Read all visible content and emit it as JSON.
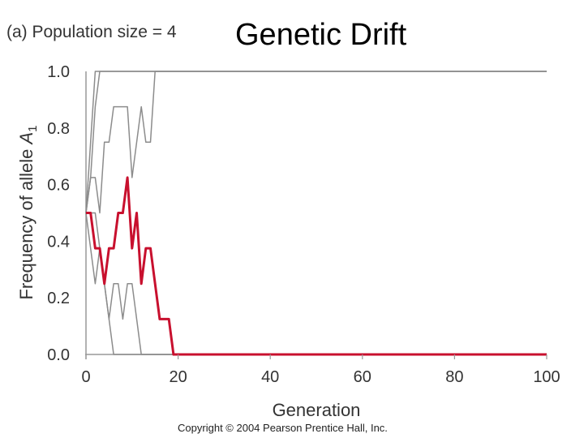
{
  "header": {
    "panel_label": "(a) Population size = 4",
    "title": "Genetic Drift"
  },
  "footer": {
    "copyright": "Copyright © 2004 Pearson Prentice Hall, Inc."
  },
  "chart_data": {
    "type": "line",
    "title": "Genetic Drift",
    "subtitle": "(a) Population size = 4",
    "xlabel": "Generation",
    "ylabel": "Frequency of allele A1",
    "ylabel_parts": {
      "text": "Frequency of allele ",
      "symbol": "A",
      "subscript": "1"
    },
    "xlim": [
      0,
      100
    ],
    "ylim": [
      0.0,
      1.0
    ],
    "xticks": [
      "0",
      "20",
      "40",
      "60",
      "80",
      "100"
    ],
    "yticks": [
      "0.0",
      "0.2",
      "0.4",
      "0.6",
      "0.8",
      "1.0"
    ],
    "grid": false,
    "colors": {
      "highlight": "#c8102e",
      "other": "#8c8c8c",
      "axis": "#999999"
    },
    "series": [
      {
        "highlight": true,
        "values": [
          [
            0,
            0.5
          ],
          [
            1,
            0.5
          ],
          [
            2,
            0.375
          ],
          [
            3,
            0.375
          ],
          [
            4,
            0.25
          ],
          [
            5,
            0.375
          ],
          [
            6,
            0.375
          ],
          [
            7,
            0.5
          ],
          [
            8,
            0.5
          ],
          [
            9,
            0.625
          ],
          [
            10,
            0.375
          ],
          [
            11,
            0.5
          ],
          [
            12,
            0.25
          ],
          [
            13,
            0.375
          ],
          [
            14,
            0.375
          ],
          [
            15,
            0.25
          ],
          [
            16,
            0.125
          ],
          [
            17,
            0.125
          ],
          [
            18,
            0.125
          ],
          [
            19,
            0
          ],
          [
            100,
            0
          ]
        ]
      },
      {
        "highlight": false,
        "values": [
          [
            0,
            0.5
          ],
          [
            1,
            0.75
          ],
          [
            2,
            1.0
          ],
          [
            100,
            1.0
          ]
        ]
      },
      {
        "highlight": false,
        "values": [
          [
            0,
            0.5
          ],
          [
            1,
            0.625
          ],
          [
            2,
            0.875
          ],
          [
            3,
            1.0
          ],
          [
            100,
            1.0
          ]
        ]
      },
      {
        "highlight": false,
        "values": [
          [
            0,
            0.5
          ],
          [
            1,
            0.625
          ],
          [
            2,
            0.625
          ],
          [
            3,
            0.5
          ],
          [
            4,
            0.75
          ],
          [
            5,
            0.75
          ],
          [
            6,
            0.875
          ],
          [
            7,
            0.875
          ],
          [
            8,
            0.875
          ],
          [
            9,
            0.875
          ],
          [
            10,
            0.625
          ],
          [
            11,
            0.75
          ],
          [
            12,
            0.875
          ],
          [
            13,
            0.75
          ],
          [
            14,
            0.75
          ],
          [
            15,
            1.0
          ],
          [
            100,
            1.0
          ]
        ]
      },
      {
        "highlight": false,
        "values": [
          [
            0,
            0.5
          ],
          [
            1,
            0.5
          ],
          [
            2,
            0.5
          ],
          [
            3,
            0.375
          ],
          [
            4,
            0.25
          ],
          [
            5,
            0.125
          ],
          [
            6,
            0.25
          ],
          [
            7,
            0.25
          ],
          [
            8,
            0.125
          ],
          [
            9,
            0.25
          ],
          [
            10,
            0.25
          ],
          [
            11,
            0.125
          ],
          [
            12,
            0
          ],
          [
            100,
            0
          ]
        ]
      },
      {
        "highlight": false,
        "values": [
          [
            0,
            0.5
          ],
          [
            1,
            0.375
          ],
          [
            2,
            0.25
          ],
          [
            3,
            0.375
          ],
          [
            4,
            0.25
          ],
          [
            5,
            0.125
          ],
          [
            6,
            0
          ],
          [
            100,
            0
          ]
        ]
      }
    ]
  }
}
